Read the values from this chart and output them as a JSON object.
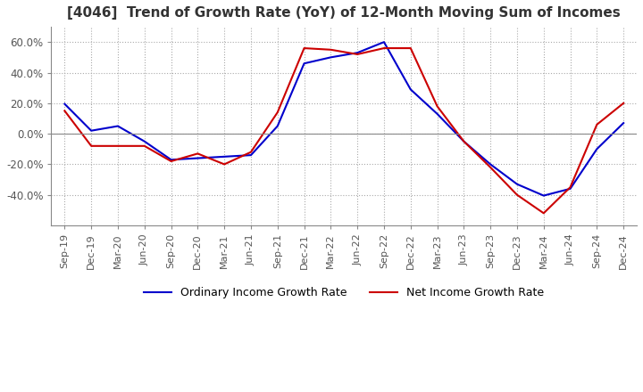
{
  "title": "[4046]  Trend of Growth Rate (YoY) of 12-Month Moving Sum of Incomes",
  "title_fontsize": 11,
  "x_labels": [
    "Sep-19",
    "Dec-19",
    "Mar-20",
    "Jun-20",
    "Sep-20",
    "Dec-20",
    "Mar-21",
    "Jun-21",
    "Sep-21",
    "Dec-21",
    "Mar-22",
    "Jun-22",
    "Sep-22",
    "Dec-22",
    "Mar-23",
    "Jun-23",
    "Sep-23",
    "Dec-23",
    "Mar-24",
    "Jun-24",
    "Sep-24",
    "Dec-24"
  ],
  "ordinary_income": [
    19.5,
    2.0,
    5.0,
    -5.0,
    -17.0,
    -16.0,
    -15.0,
    -14.0,
    5.0,
    46.0,
    50.0,
    53.0,
    60.0,
    29.0,
    13.0,
    -5.0,
    -20.0,
    -33.0,
    -40.5,
    -36.0,
    -10.0,
    7.0
  ],
  "net_income": [
    15.0,
    -8.0,
    -8.0,
    -8.0,
    -18.0,
    -13.0,
    -20.0,
    -12.0,
    14.0,
    56.0,
    55.0,
    52.0,
    56.0,
    56.0,
    18.0,
    -5.0,
    -22.0,
    -40.0,
    -52.0,
    -35.0,
    6.0,
    20.0
  ],
  "ylim": [
    -60,
    70
  ],
  "yticks": [
    -40.0,
    -20.0,
    0.0,
    20.0,
    40.0,
    60.0
  ],
  "ordinary_color": "#0000CC",
  "net_color": "#CC0000",
  "background_color": "#FFFFFF",
  "grid_color": "#AAAAAA",
  "border_color": "#888888",
  "legend_labels": [
    "Ordinary Income Growth Rate",
    "Net Income Growth Rate"
  ]
}
